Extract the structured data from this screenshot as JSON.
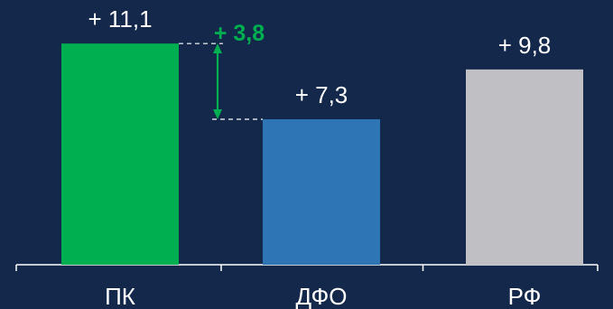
{
  "chart_data": {
    "type": "bar",
    "categories": [
      "ПК",
      "ДФО",
      "РФ"
    ],
    "values": [
      11.1,
      7.3,
      9.8
    ],
    "value_labels": [
      "+ 11,1",
      "+ 7,3",
      "+ 9,8"
    ],
    "bar_colors": [
      "#00b050",
      "#2e75b6",
      "#bfbfc4"
    ],
    "ylim": [
      0,
      12.65
    ],
    "grid": false,
    "legend": "none",
    "annotation": {
      "label": "+ 3,8",
      "from_value": 11.1,
      "to_value": 7.3,
      "color": "#00b050"
    }
  },
  "colors": {
    "background": "#13284a",
    "text": "#ffffff",
    "axis": "#ffffff",
    "accent": "#00b050"
  }
}
